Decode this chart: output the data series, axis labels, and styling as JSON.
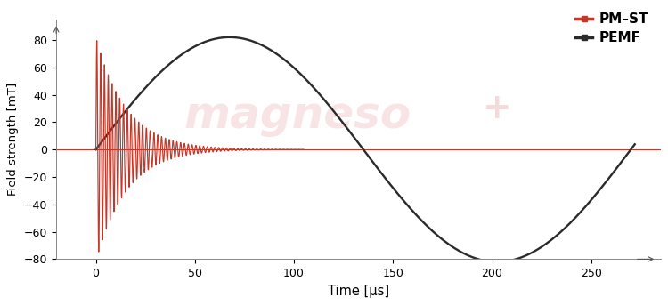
{
  "title": "",
  "xlabel": "Time [μs]",
  "ylabel": "Field strength [mT]",
  "xlim": [
    -20,
    285
  ],
  "ylim": [
    -80,
    95
  ],
  "yticks": [
    -80,
    -60,
    -40,
    -20,
    0,
    20,
    40,
    60,
    80
  ],
  "xticks": [
    0,
    50,
    100,
    150,
    200,
    250
  ],
  "pmst_color": "#c0392b",
  "pemf_color": "#2b2b2b",
  "background_color": "#ffffff",
  "plot_bg_color": "#f5f5f5",
  "legend_labels": [
    "PM–ST",
    "PEMF"
  ],
  "pmst_amplitude": 82,
  "pmst_decay": 0.065,
  "pmst_freq": 0.52,
  "pmst_end": 105,
  "pemf_amplitude": 82,
  "pemf_period": 270,
  "watermark_text": "magneso",
  "watermark_color": "#e8a0a0",
  "watermark_alpha": 0.28,
  "watermark_plus_color": "#d08080",
  "watermark_plus_alpha": 0.28
}
